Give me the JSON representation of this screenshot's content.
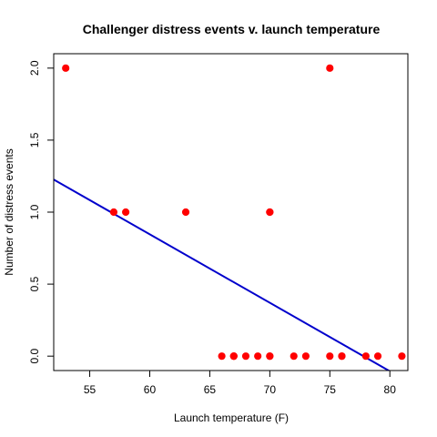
{
  "chart_data": {
    "type": "scatter",
    "title": "Challenger distress events v. launch temperature",
    "xlabel": "Launch temperature (F)",
    "ylabel": "Number of distress events",
    "xlim": [
      52,
      81.5
    ],
    "ylim": [
      -0.1,
      2.1
    ],
    "xticks": [
      55,
      60,
      65,
      70,
      75,
      80
    ],
    "xtick_labels": [
      "55",
      "60",
      "65",
      "70",
      "75",
      "80"
    ],
    "yticks": [
      0.0,
      0.5,
      1.0,
      1.5,
      2.0
    ],
    "ytick_labels": [
      "0.0",
      "0.5",
      "1.0",
      "1.5",
      "2.0"
    ],
    "grid": false,
    "point_color": "#ff0000",
    "line_color": "#0000cc",
    "points": [
      {
        "x": 53,
        "y": 2
      },
      {
        "x": 57,
        "y": 1
      },
      {
        "x": 58,
        "y": 1
      },
      {
        "x": 63,
        "y": 1
      },
      {
        "x": 66,
        "y": 0
      },
      {
        "x": 67,
        "y": 0
      },
      {
        "x": 67,
        "y": 0
      },
      {
        "x": 67,
        "y": 0
      },
      {
        "x": 68,
        "y": 0
      },
      {
        "x": 69,
        "y": 0
      },
      {
        "x": 70,
        "y": 0
      },
      {
        "x": 70,
        "y": 1
      },
      {
        "x": 70,
        "y": 0
      },
      {
        "x": 70,
        "y": 1
      },
      {
        "x": 72,
        "y": 0
      },
      {
        "x": 73,
        "y": 0
      },
      {
        "x": 75,
        "y": 0
      },
      {
        "x": 75,
        "y": 2
      },
      {
        "x": 76,
        "y": 0
      },
      {
        "x": 76,
        "y": 0
      },
      {
        "x": 78,
        "y": 0
      },
      {
        "x": 79,
        "y": 0
      },
      {
        "x": 81,
        "y": 0
      }
    ],
    "fit_line": {
      "intercept": 3.6984,
      "slope": -0.04754
    }
  }
}
